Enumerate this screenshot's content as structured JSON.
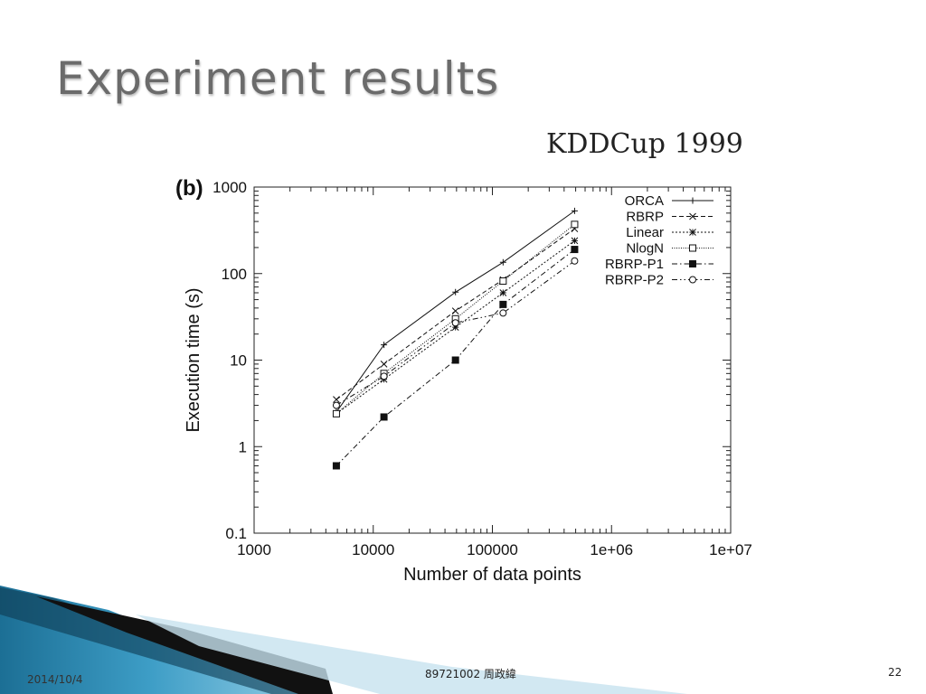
{
  "slide": {
    "title": "Experiment results",
    "dataset_title": "KDDCup 1999",
    "footer_date": "2014/10/4",
    "footer_author": "89721002 周政緯",
    "page_number": "22"
  },
  "chart_data": {
    "type": "line",
    "panel_label": "(b)",
    "xlabel": "Number of data points",
    "ylabel": "Execution time (s)",
    "x_scale": "log",
    "y_scale": "log",
    "xlim": [
      1000,
      10000000
    ],
    "ylim": [
      0.1,
      1000
    ],
    "x_ticks": [
      1000,
      10000,
      100000,
      1000000,
      10000000
    ],
    "x_tick_labels": [
      "1000",
      "10000",
      "100000",
      "1e+06",
      "1e+07"
    ],
    "y_ticks": [
      0.1,
      1,
      10,
      100,
      1000
    ],
    "y_tick_labels": [
      "0.1",
      "1",
      "10",
      "100",
      "1000"
    ],
    "legend_position": "top-right",
    "grid": false,
    "x": [
      4900,
      12300,
      49000,
      123000,
      490000
    ],
    "series": [
      {
        "name": "ORCA",
        "values": [
          2.5,
          15,
          61,
          135,
          530
        ],
        "marker": "plus",
        "dash": ""
      },
      {
        "name": "RBRP",
        "values": [
          3.5,
          9,
          37,
          85,
          330
        ],
        "marker": "cross",
        "dash": "5,3"
      },
      {
        "name": "Linear",
        "values": [
          2.4,
          6,
          24,
          60,
          240
        ],
        "marker": "asterisk",
        "dash": "2,2"
      },
      {
        "name": "NlogN",
        "values": [
          2.4,
          7,
          30,
          82,
          370
        ],
        "marker": "open-square",
        "dash": "1,1.5"
      },
      {
        "name": "RBRP-P1",
        "values": [
          0.6,
          2.2,
          10,
          44,
          190
        ],
        "marker": "filled-square",
        "dash": "6,3,1.5,3"
      },
      {
        "name": "RBRP-P2",
        "values": [
          3,
          6.5,
          27,
          35,
          140
        ],
        "marker": "open-circle",
        "dash": "6,3,1.5,3,1.5,3"
      }
    ]
  }
}
